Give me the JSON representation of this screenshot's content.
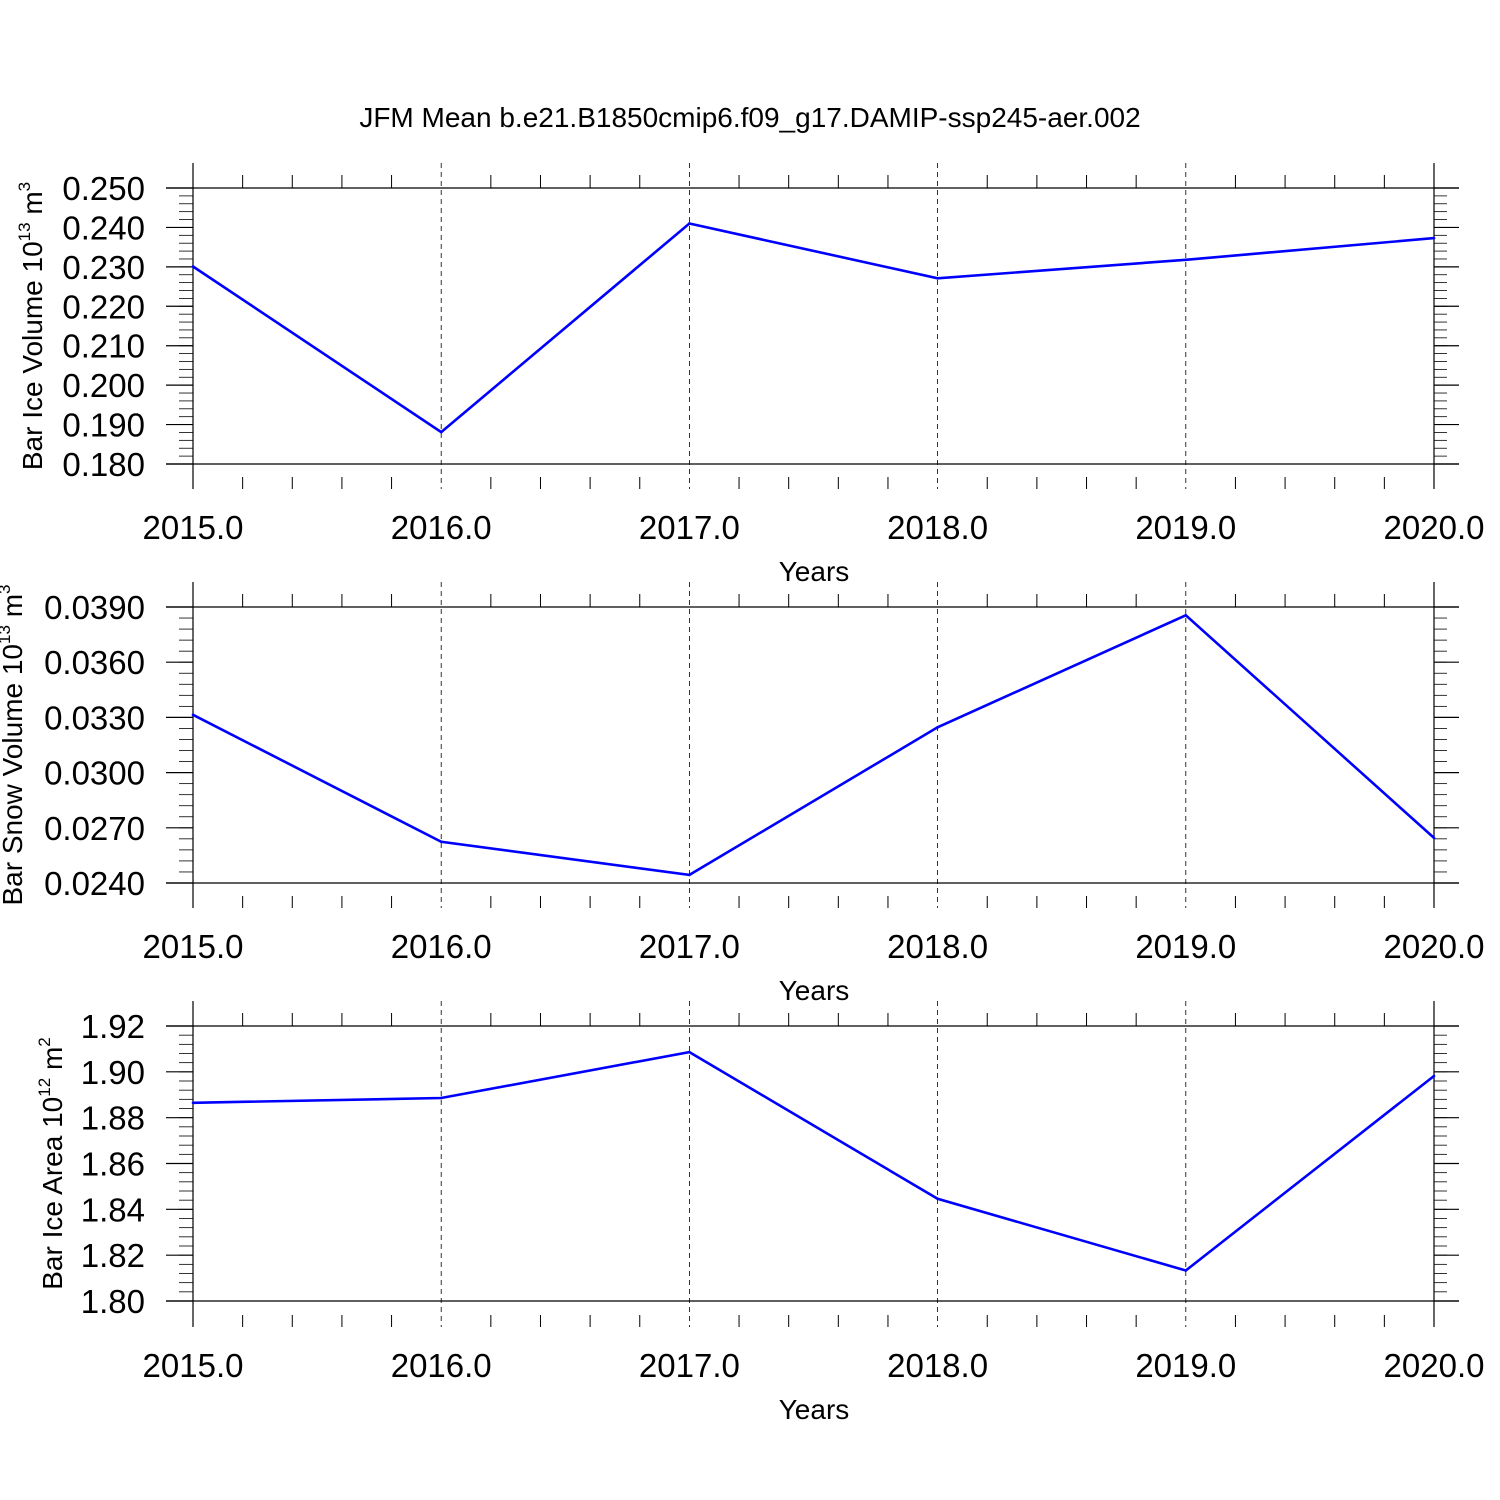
{
  "title": "JFM Mean b.e21.B1850cmip6.f09_g17.DAMIP-ssp245-aer.002",
  "colors": {
    "series": "#0000ff",
    "axis": "#000000",
    "grid": "#000000",
    "background": "#ffffff"
  },
  "chart_data": [
    {
      "type": "line",
      "ylabel": {
        "text": "Bar Ice Volume 10",
        "sup": "13",
        "unit": " m",
        "unit_sup": "3"
      },
      "xlabel": "Years",
      "xlim": [
        2015,
        2020
      ],
      "ylim": [
        0.18,
        0.25
      ],
      "x_ticks": [
        "2015.0",
        "2016.0",
        "2017.0",
        "2018.0",
        "2019.0",
        "2020.0"
      ],
      "y_ticks": [
        "0.180",
        "0.190",
        "0.200",
        "0.210",
        "0.220",
        "0.230",
        "0.240",
        "0.250"
      ],
      "y_tick_values": [
        0.18,
        0.19,
        0.2,
        0.21,
        0.22,
        0.23,
        0.24,
        0.25
      ],
      "y_minor_step": 0.002,
      "grid": "vertical dashed at year ticks",
      "x": [
        2015,
        2016,
        2017,
        2018,
        2019,
        2020
      ],
      "values": [
        0.2301,
        0.1881,
        0.241,
        0.2271,
        0.2318,
        0.2373
      ]
    },
    {
      "type": "line",
      "ylabel": {
        "text": "Bar Snow Volume 10",
        "sup": "13",
        "unit": " m",
        "unit_sup": "3"
      },
      "xlabel": "Years",
      "xlim": [
        2015,
        2020
      ],
      "ylim": [
        0.024,
        0.039
      ],
      "x_ticks": [
        "2015.0",
        "2016.0",
        "2017.0",
        "2018.0",
        "2019.0",
        "2020.0"
      ],
      "y_ticks": [
        "0.0240",
        "0.0270",
        "0.0300",
        "0.0330",
        "0.0360",
        "0.0390"
      ],
      "y_tick_values": [
        0.024,
        0.027,
        0.03,
        0.033,
        0.036,
        0.039
      ],
      "y_minor_step": 0.0006,
      "grid": "vertical dashed at year ticks",
      "x": [
        2015,
        2016,
        2017,
        2018,
        2019,
        2020
      ],
      "values": [
        0.03314,
        0.02624,
        0.02444,
        0.03246,
        0.03855,
        0.02645
      ]
    },
    {
      "type": "line",
      "ylabel": {
        "text": "Bar Ice Area 10",
        "sup": "12",
        "unit": " m",
        "unit_sup": "2"
      },
      "xlabel": "Years",
      "xlim": [
        2015,
        2020
      ],
      "ylim": [
        1.8,
        1.92
      ],
      "x_ticks": [
        "2015.0",
        "2016.0",
        "2017.0",
        "2018.0",
        "2019.0",
        "2020.0"
      ],
      "y_ticks": [
        "1.80",
        "1.82",
        "1.84",
        "1.86",
        "1.88",
        "1.90",
        "1.92"
      ],
      "y_tick_values": [
        1.8,
        1.82,
        1.84,
        1.86,
        1.88,
        1.9,
        1.92
      ],
      "y_minor_step": 0.004,
      "grid": "vertical dashed at year ticks",
      "x": [
        2015,
        2016,
        2017,
        2018,
        2019,
        2020
      ],
      "values": [
        1.8865,
        1.8886,
        1.9086,
        1.8446,
        1.8133,
        1.8982
      ]
    }
  ]
}
